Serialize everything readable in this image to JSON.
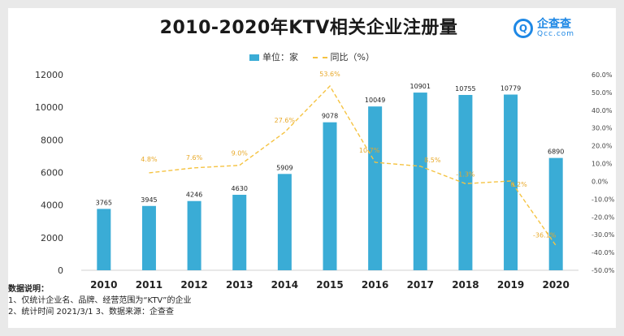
{
  "chart_data": {
    "type": "bar",
    "title": "2010-2020年KTV相关企业注册量",
    "categories": [
      "2010",
      "2011",
      "2012",
      "2013",
      "2014",
      "2015",
      "2016",
      "2017",
      "2018",
      "2019",
      "2020"
    ],
    "series": [
      {
        "name": "单位：家",
        "type": "bar",
        "axis": "left",
        "color": "#3aacd6",
        "values": [
          3765,
          3945,
          4246,
          4630,
          5909,
          9078,
          10049,
          10901,
          10755,
          10779,
          6890
        ],
        "labels": [
          "3765",
          "3945",
          "4246",
          "4630",
          "5909",
          "9078",
          "10049",
          "10901",
          "10755",
          "10779",
          "6890"
        ]
      },
      {
        "name": "同比（%）",
        "type": "line",
        "axis": "right",
        "color": "#f5c342",
        "values": [
          null,
          4.8,
          7.6,
          9.0,
          27.6,
          53.6,
          10.7,
          8.5,
          -1.3,
          0.2,
          -36.1
        ],
        "labels": [
          "",
          "4.8%",
          "7.6%",
          "9.0%",
          "27.6%",
          "53.6%",
          "10.7%",
          "8.5%",
          "-1.3%",
          "0.2%",
          "-36.1%"
        ]
      }
    ],
    "ylim": [
      0,
      12000
    ],
    "y_ticks": [
      "0",
      "2000",
      "4000",
      "6000",
      "8000",
      "10000",
      "12000"
    ],
    "y2lim": [
      -50,
      60
    ],
    "y2_ticks": [
      "-50.0%",
      "-40.0%",
      "-30.0%",
      "-20.0%",
      "-10.0%",
      "0.0%",
      "10.0%",
      "20.0%",
      "30.0%",
      "40.0%",
      "50.0%",
      "60.0%"
    ],
    "grid": false,
    "legend": "top-center"
  },
  "legend": {
    "bar": "单位：家",
    "line": "同比（%）"
  },
  "logo": {
    "cn": "企查查",
    "en": "Qcc.com",
    "mark": "Q"
  },
  "notes": {
    "heading": "数据说明：",
    "line1": "1、仅统计企业名、品牌、经营范围为“KTV”的企业",
    "line2": "2、统计时间 2021/3/1   3、数据来源：企查查"
  }
}
